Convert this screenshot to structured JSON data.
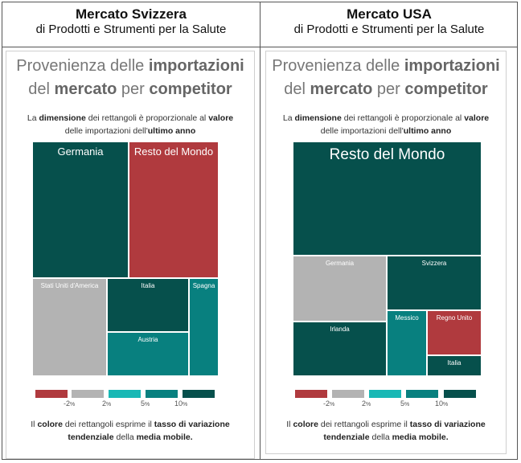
{
  "left": {
    "heading": "Mercato Svizzera",
    "subheading": "di Prodotti e Strumenti per la Salute",
    "card_title": {
      "t1": "Provenienza delle ",
      "t2": "importazioni",
      "t3": "del ",
      "t4": "mercato",
      "t5": " per ",
      "t6": "competitor"
    },
    "desc": {
      "a": "La ",
      "b": "dimensione",
      "c": " dei rettangoli è proporzionale al ",
      "d": "valore",
      "e": "delle importazioni dell'",
      "f": "ultimo anno"
    },
    "footer": {
      "a": "Il ",
      "b": "colore",
      "c": " dei rettangoli esprime il ",
      "d": "tasso di variazione",
      "e": "tendenziale",
      "f": " della ",
      "g": "media mobile."
    }
  },
  "right": {
    "heading": "Mercato USA",
    "subheading": "di Prodotti e Strumenti per la Salute",
    "card_title": {
      "t1": "Provenienza delle ",
      "t2": "importazioni",
      "t3": "del ",
      "t4": "mercato",
      "t5": " per ",
      "t6": "competitor"
    },
    "desc": {
      "a": "La ",
      "b": "dimensione",
      "c": " dei rettangoli è proporzionale al ",
      "d": "valore",
      "e": "delle importazioni dell'",
      "f": "ultimo anno"
    },
    "footer": {
      "a": "Il ",
      "b": "colore",
      "c": " dei rettangoli esprime il ",
      "d": "tasso di variazione",
      "e": "tendenziale",
      "f": " della ",
      "g": "media mobile."
    }
  },
  "colors": {
    "red": "#b03a3e",
    "grey": "#b3b3b3",
    "teal_light": "#19b8b5",
    "teal": "#08807f",
    "teal_dark": "#06504c"
  },
  "legend": {
    "colors": [
      "#b03a3e",
      "#b3b3b3",
      "#19b8b5",
      "#08807f",
      "#06504c"
    ],
    "ticks": [
      {
        "v": "-2",
        "u": "%"
      },
      {
        "v": "2",
        "u": "%"
      },
      {
        "v": "5",
        "u": "%"
      },
      {
        "v": "10",
        "u": "%"
      }
    ]
  },
  "chart_data": [
    {
      "type": "treemap",
      "market": "Mercato Svizzera",
      "items": [
        {
          "label": "Germania",
          "color": "#06504c"
        },
        {
          "label": "Resto del Mondo",
          "color": "#b03a3e"
        },
        {
          "label": "Stati Uniti d'America",
          "color": "#b3b3b3"
        },
        {
          "label": "Italia",
          "color": "#06504c"
        },
        {
          "label": "Spagna",
          "color": "#08807f"
        },
        {
          "label": "Austria",
          "color": "#08807f"
        }
      ]
    },
    {
      "type": "treemap",
      "market": "Mercato USA",
      "items": [
        {
          "label": "Resto del Mondo",
          "color": "#06504c"
        },
        {
          "label": "Germania",
          "color": "#b3b3b3"
        },
        {
          "label": "Svizzera",
          "color": "#06504c"
        },
        {
          "label": "Irlanda",
          "color": "#06504c"
        },
        {
          "label": "Messico",
          "color": "#08807f"
        },
        {
          "label": "Regno Unito",
          "color": "#b03a3e"
        },
        {
          "label": "Italia",
          "color": "#06504c"
        }
      ]
    }
  ]
}
